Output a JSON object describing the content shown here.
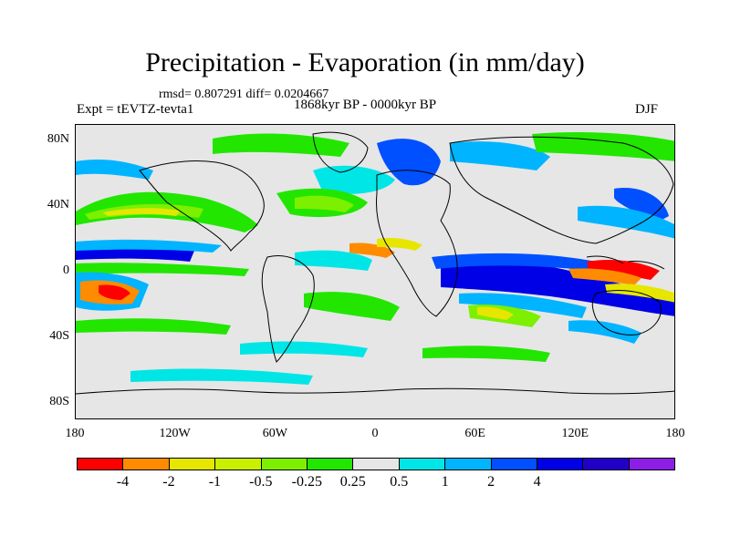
{
  "title": "Precipitation - Evaporation (in mm/day)",
  "stats": "rmsd= 0.807291 diff= 0.0204667",
  "period": "1868kyr BP - 0000kyr BP",
  "experiment": "Expt = tEVTZ-tevta1",
  "season": "DJF",
  "map": {
    "lon_range": [
      -180,
      180
    ],
    "lat_range": [
      -90,
      90
    ],
    "yticks": [
      {
        "label": "80N",
        "lat": 80
      },
      {
        "label": "40N",
        "lat": 40
      },
      {
        "label": "0",
        "lat": 0
      },
      {
        "label": "40S",
        "lat": -40
      },
      {
        "label": "80S",
        "lat": -80
      }
    ],
    "xticks": [
      {
        "label": "180",
        "lon": -180
      },
      {
        "label": "120W",
        "lon": -120
      },
      {
        "label": "60W",
        "lon": -60
      },
      {
        "label": "0",
        "lon": 0
      },
      {
        "label": "60E",
        "lon": 60
      },
      {
        "label": "120E",
        "lon": 120
      },
      {
        "label": "180",
        "lon": 180
      }
    ],
    "background_color": "#e6e6e6"
  },
  "colorbar": {
    "colors": [
      "#ff0000",
      "#ff8c00",
      "#e6e600",
      "#c8f000",
      "#7cf000",
      "#22e600",
      "#e6e6e6",
      "#00e6e6",
      "#00b4ff",
      "#0050ff",
      "#0000e6",
      "#2300c8",
      "#8c1ee6"
    ],
    "labels": [
      {
        "text": "-4",
        "index": 1
      },
      {
        "text": "-2",
        "index": 2
      },
      {
        "text": "-1",
        "index": 3
      },
      {
        "text": "-0.5",
        "index": 4
      },
      {
        "text": "-0.25",
        "index": 5
      },
      {
        "text": "0.25",
        "index": 6
      },
      {
        "text": "0.5",
        "index": 7
      },
      {
        "text": "1",
        "index": 8
      },
      {
        "text": "2",
        "index": 9
      },
      {
        "text": "4",
        "index": 10
      }
    ]
  }
}
